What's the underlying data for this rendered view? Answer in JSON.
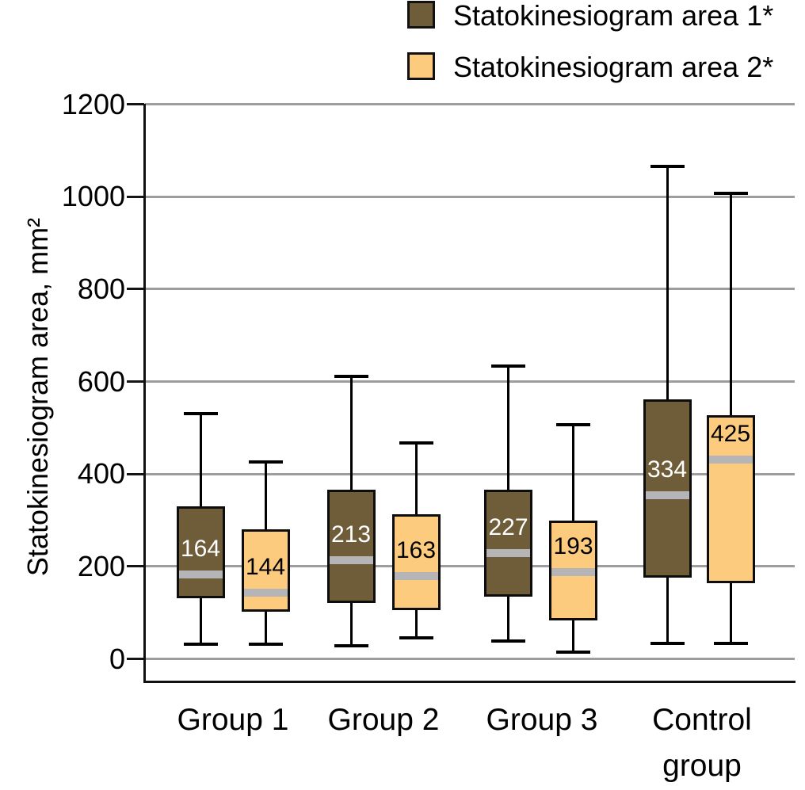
{
  "legend": {
    "position": "top-right",
    "items": [
      {
        "label": "Statokinesiogram area 1*",
        "color": "#6F5D3A"
      },
      {
        "label": "Statokinesiogram area 2*",
        "color": "#FCCB7D"
      }
    ]
  },
  "y_axis": {
    "title": "Statokinesiogram area, mm²",
    "ticks": [
      0,
      200,
      400,
      600,
      800,
      1000,
      1200
    ]
  },
  "x_axis": {
    "categories": [
      "Group 1",
      "Group 2",
      "Group 3",
      "Control group"
    ]
  },
  "chart_data": {
    "type": "box",
    "title": "",
    "xlabel": "",
    "ylabel": "Statokinesiogram area, mm²",
    "ylim": [
      0,
      1200
    ],
    "grid": true,
    "legend_position": "top-right",
    "categories": [
      "Group 1",
      "Group 2",
      "Group 3",
      "Control group"
    ],
    "median_band_color": "#b5b5b7",
    "series": [
      {
        "name": "Statokinesiogram area 1*",
        "color": "#6F5D3A",
        "label_color": "#ffffff",
        "boxes": [
          {
            "category": "Group 1",
            "min": 32,
            "q1": 131,
            "median": 164,
            "median_line": 183,
            "q3": 330,
            "max": 531,
            "label": "164"
          },
          {
            "category": "Group 2",
            "min": 28,
            "q1": 121,
            "median": 213,
            "median_line": 213,
            "q3": 366,
            "max": 612,
            "label": "213"
          },
          {
            "category": "Group 3",
            "min": 39,
            "q1": 135,
            "median": 227,
            "median_line": 229,
            "q3": 366,
            "max": 633,
            "label": "227"
          },
          {
            "category": "Control group",
            "min": 33,
            "q1": 176,
            "median": 334,
            "median_line": 354,
            "q3": 562,
            "max": 1065,
            "label": "334"
          }
        ]
      },
      {
        "name": "Statokinesiogram area 2*",
        "color": "#FCCB7D",
        "label_color": "#000000",
        "boxes": [
          {
            "category": "Group 1",
            "min": 32,
            "q1": 102,
            "median": 144,
            "median_line": 144,
            "q3": 281,
            "max": 426,
            "label": "144"
          },
          {
            "category": "Group 2",
            "min": 45,
            "q1": 105,
            "median": 163,
            "median_line": 179,
            "q3": 313,
            "max": 467,
            "label": "163"
          },
          {
            "category": "Group 3",
            "min": 15,
            "q1": 83,
            "median": 193,
            "median_line": 188,
            "q3": 299,
            "max": 506,
            "label": "193"
          },
          {
            "category": "Control group",
            "min": 33,
            "q1": 164,
            "median": 425,
            "median_line": 431,
            "q3": 527,
            "max": 1008,
            "label": "425"
          }
        ]
      }
    ]
  }
}
